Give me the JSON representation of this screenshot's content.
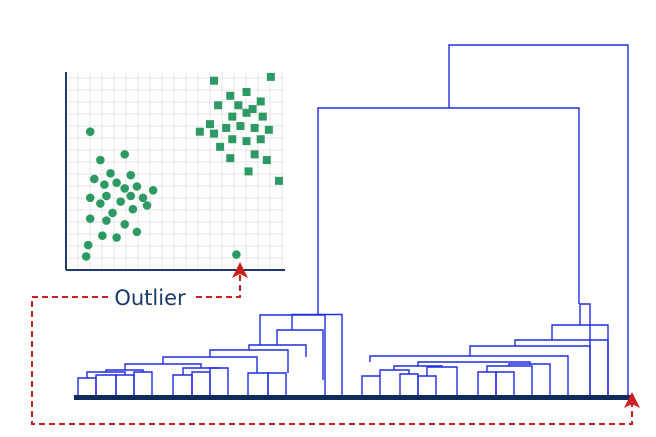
{
  "annotation": {
    "label": "Outlier"
  },
  "colors": {
    "point": "#2e9a63",
    "grid": "#e6e6e6",
    "axis": "#1f3b6b",
    "dendrogram": "#1f2de0",
    "baseline": "#0f2b5c",
    "arrow": "#cc1f1f",
    "label": "#1a3a6b"
  },
  "scatter": {
    "grid_lines": true,
    "series": [
      {
        "name": "",
        "shape": "circle",
        "points": [
          [
            0.07,
            0.7
          ],
          [
            0.12,
            0.55
          ],
          [
            0.24,
            0.58
          ],
          [
            0.09,
            0.45
          ],
          [
            0.17,
            0.48
          ],
          [
            0.27,
            0.47
          ],
          [
            0.14,
            0.42
          ],
          [
            0.2,
            0.43
          ],
          [
            0.24,
            0.4
          ],
          [
            0.3,
            0.41
          ],
          [
            0.38,
            0.39
          ],
          [
            0.07,
            0.35
          ],
          [
            0.15,
            0.36
          ],
          [
            0.27,
            0.36
          ],
          [
            0.33,
            0.35
          ],
          [
            0.12,
            0.32
          ],
          [
            0.22,
            0.33
          ],
          [
            0.35,
            0.31
          ],
          [
            0.18,
            0.27
          ],
          [
            0.28,
            0.29
          ],
          [
            0.07,
            0.24
          ],
          [
            0.15,
            0.23
          ],
          [
            0.24,
            0.21
          ],
          [
            0.3,
            0.17
          ],
          [
            0.13,
            0.15
          ],
          [
            0.2,
            0.14
          ],
          [
            0.06,
            0.1
          ],
          [
            0.05,
            0.04
          ],
          [
            0.79,
            0.05
          ]
        ]
      },
      {
        "name": "",
        "shape": "square",
        "points": [
          [
            0.68,
            0.97
          ],
          [
            0.96,
            0.99
          ],
          [
            0.84,
            0.91
          ],
          [
            0.76,
            0.89
          ],
          [
            0.91,
            0.86
          ],
          [
            0.7,
            0.84
          ],
          [
            0.8,
            0.84
          ],
          [
            0.87,
            0.82
          ],
          [
            0.84,
            0.8
          ],
          [
            0.77,
            0.78
          ],
          [
            0.92,
            0.78
          ],
          [
            0.66,
            0.74
          ],
          [
            0.74,
            0.72
          ],
          [
            0.81,
            0.73
          ],
          [
            0.88,
            0.72
          ],
          [
            0.61,
            0.7
          ],
          [
            0.68,
            0.69
          ],
          [
            0.95,
            0.71
          ],
          [
            0.77,
            0.66
          ],
          [
            0.84,
            0.65
          ],
          [
            0.91,
            0.66
          ],
          [
            0.71,
            0.62
          ],
          [
            0.88,
            0.58
          ],
          [
            0.76,
            0.56
          ],
          [
            0.94,
            0.55
          ],
          [
            0.85,
            0.49
          ],
          [
            1.0,
            0.44
          ]
        ]
      }
    ]
  },
  "dendrogram": {
    "heights": {
      "root": 1.0,
      "big": 0.82,
      "left_top": 0.23,
      "left_a": 0.19,
      "left_b": 0.14,
      "right_top": 0.26,
      "right_a": 0.2,
      "right_b": 0.15
    }
  }
}
